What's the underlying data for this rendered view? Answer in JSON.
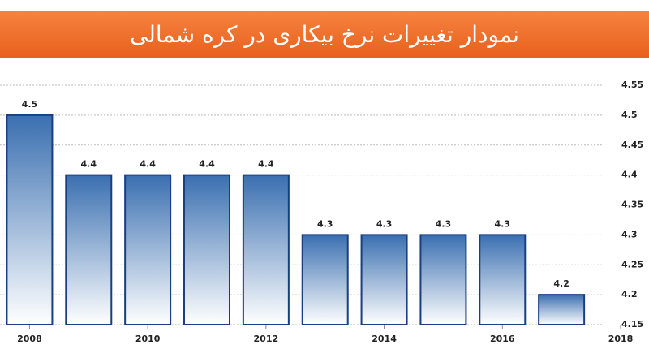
{
  "chart_data": {
    "type": "bar",
    "title": "نمودار تغییرات نرخ بیکاری در کره شمالی",
    "x": [
      2008,
      2009,
      2010,
      2011,
      2012,
      2013,
      2014,
      2015,
      2016,
      2017
    ],
    "values": [
      4.5,
      4.4,
      4.4,
      4.4,
      4.4,
      4.3,
      4.3,
      4.3,
      4.3,
      4.2
    ],
    "color": "#3a6fb0",
    "xlim": [
      2007.5,
      2018
    ],
    "xticks": [
      2008,
      2010,
      2012,
      2014,
      2016,
      2018
    ],
    "ylim": [
      4.15,
      4.55
    ],
    "yticks": [
      4.15,
      4.2,
      4.25,
      4.3,
      4.35,
      4.4,
      4.45,
      4.5,
      4.55
    ],
    "grid": true
  }
}
